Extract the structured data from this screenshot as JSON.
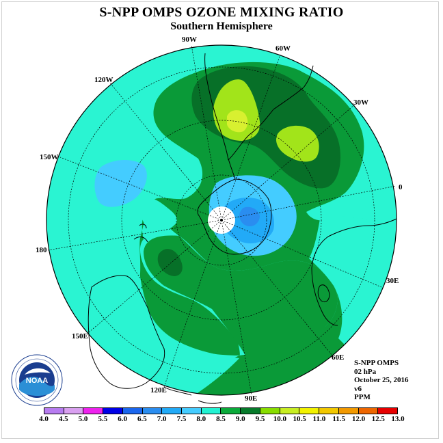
{
  "title": "S-NPP OMPS OZONE MIXING RATIO",
  "subtitle": "Southern Hemisphere",
  "longitude_labels": {
    "w90": "90W",
    "w60": "60W",
    "w120": "120W",
    "w30": "30W",
    "w150": "150W",
    "e0": "0",
    "d180": "180",
    "e30": "30E",
    "e150": "150E",
    "e60": "60E",
    "e120": "120E",
    "e90": "90E"
  },
  "info": {
    "instrument": "S-NPP OMPS",
    "pressure": "02 hPa",
    "date": "October 25, 2016",
    "version": "v6",
    "units": "PPM"
  },
  "logo": {
    "name": "NOAA",
    "ring_text": "NATIONAL OCEANIC AND ATMOSPHERIC ADMINISTRATION • U.S. DEPARTMENT OF COMMERCE"
  },
  "colorbar": {
    "labels": [
      "4.0",
      "4.5",
      "5.0",
      "5.5",
      "6.0",
      "6.5",
      "7.0",
      "7.5",
      "8.0",
      "8.5",
      "9.0",
      "9.5",
      "10.0",
      "10.5",
      "11.0",
      "11.5",
      "12.0",
      "12.5",
      "13.0"
    ],
    "colors": [
      "#b77cf0",
      "#d9a0f0",
      "#ee22ee",
      "#0000e6",
      "#1a66ee",
      "#2a8df0",
      "#22aaf7",
      "#44ccff",
      "#22f2d2",
      "#0aaa3a",
      "#067a2a",
      "#88dd00",
      "#c8ee22",
      "#f2f200",
      "#f2c800",
      "#f29900",
      "#ee6600",
      "#e60000",
      "#884c30"
    ]
  },
  "map_colors": {
    "ocean_bg": "#2af4d2",
    "band_8_5": "#0a9a38",
    "band_9": "#077028",
    "band_9_5": "#a2e41a",
    "band_10": "#d8f030",
    "band_7_5": "#44ccff",
    "band_7": "#22aaf7",
    "band_6_5": "#2a8df0"
  }
}
